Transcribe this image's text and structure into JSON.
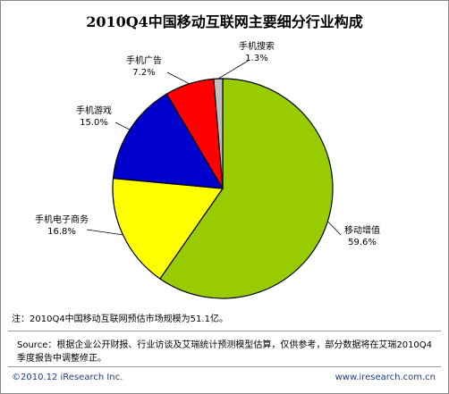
{
  "chart_data": {
    "type": "pie",
    "title": "2010Q4中国移动互联网主要细分行业构成",
    "categories": [
      "移动增值",
      "手机电子商务",
      "手机游戏",
      "手机广告",
      "手机搜索"
    ],
    "values": [
      59.6,
      16.8,
      15.0,
      7.2,
      1.3
    ],
    "value_labels": [
      "59.6%",
      "16.8%",
      "15.0%",
      "7.2%",
      "1.3%"
    ],
    "colors": [
      "#99cc00",
      "#ffff00",
      "#0000cc",
      "#ff0000",
      "#c0c0c0"
    ]
  },
  "note": "注：2010Q4中国移动互联网预估市场规模为51.1亿。",
  "source": "Source：根据企业公开财报、行业访谈及艾瑞统计预测模型估算，仅供参考，部分数据将在艾瑞2010Q4季度报告中调整修正。",
  "footer": {
    "copyright": "©2010.12 iResearch Inc.",
    "website": "www.iresearch.com.cn"
  }
}
